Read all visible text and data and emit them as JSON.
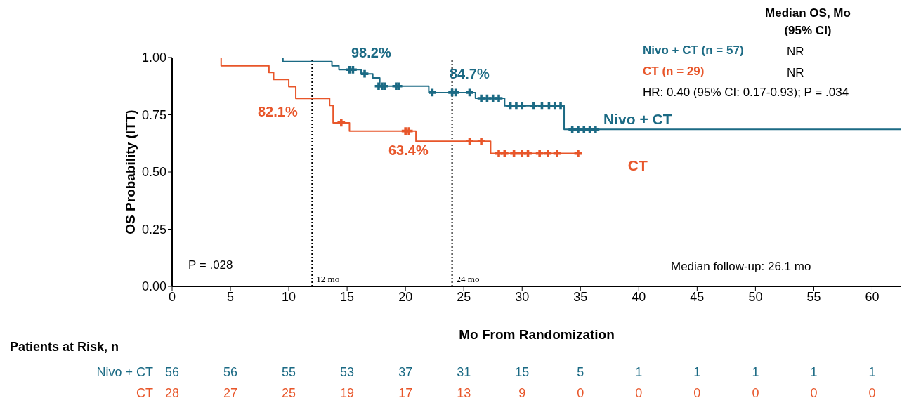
{
  "chart_data": {
    "type": "step",
    "xlabel": "Mo From Randomization",
    "ylabel": "OS Probability (ITT)",
    "xlim": [
      0,
      62.5
    ],
    "xticks": [
      0,
      5,
      10,
      15,
      20,
      25,
      30,
      35,
      40,
      45,
      50,
      55,
      60
    ],
    "ylim": [
      0,
      1
    ],
    "yticks": [
      {
        "value": 0,
        "label": "0.00"
      },
      {
        "value": 0.25,
        "label": "0.25"
      },
      {
        "value": 0.5,
        "label": "0.50"
      },
      {
        "value": 0.75,
        "label": "0.75"
      },
      {
        "value": 1,
        "label": "1.00"
      }
    ],
    "grid": false,
    "legend": false,
    "line_style": "solid",
    "series": [
      {
        "name": "Nivo + CT",
        "color": "#1b6a84",
        "x": [
          0,
          9.5,
          13.7,
          14.3,
          16.2,
          17.2,
          17.8,
          22.0,
          26.0,
          28.5,
          33.6,
          62.5
        ],
        "values": [
          1,
          0.982,
          0.964,
          0.947,
          0.929,
          0.911,
          0.875,
          0.847,
          0.822,
          0.789,
          0.686,
          0.686
        ]
      },
      {
        "name": "CT",
        "color": "#e8562a",
        "x": [
          0,
          4.2,
          8.3,
          8.7,
          10.0,
          10.6,
          13.5,
          13.8,
          15.2,
          20.9,
          27.3,
          34.8
        ],
        "values": [
          1,
          0.964,
          0.935,
          0.904,
          0.873,
          0.821,
          0.791,
          0.715,
          0.679,
          0.634,
          0.581,
          0.581
        ]
      },
      {
        "type": "scatter",
        "marker": "cross",
        "color": "#1b6a84",
        "x": [
          15.2,
          15.5,
          16.5,
          17.7,
          18.0,
          18.2,
          19.2,
          19.4,
          22.3,
          24.0,
          24.3,
          25.5,
          26.5,
          27.0,
          27.5,
          28.0,
          29.0,
          29.5,
          30.0,
          31.0,
          31.7,
          32.3,
          32.8,
          33.3,
          34.3,
          34.8,
          35.3,
          35.8,
          36.3
        ],
        "values": [
          0.947,
          0.947,
          0.929,
          0.875,
          0.875,
          0.875,
          0.875,
          0.875,
          0.847,
          0.847,
          0.847,
          0.847,
          0.822,
          0.822,
          0.822,
          0.822,
          0.789,
          0.789,
          0.789,
          0.789,
          0.789,
          0.789,
          0.789,
          0.789,
          0.686,
          0.686,
          0.686,
          0.686,
          0.686
        ]
      },
      {
        "type": "scatter",
        "marker": "cross",
        "color": "#e8562a",
        "x": [
          14.5,
          20.0,
          20.3,
          25.5,
          26.5,
          28.0,
          28.5,
          29.3,
          30.0,
          30.5,
          31.5,
          32.2,
          33.0,
          34.8
        ],
        "values": [
          0.715,
          0.679,
          0.679,
          0.634,
          0.634,
          0.581,
          0.581,
          0.581,
          0.581,
          0.581,
          0.581,
          0.581,
          0.581,
          0.581
        ]
      }
    ],
    "ref_lines": [
      {
        "axis": "x",
        "value": 12,
        "label": "12 mo",
        "line_style": "dotted",
        "color": "#000000"
      },
      {
        "axis": "x",
        "value": 24,
        "label": "24 mo",
        "line_style": "dotted",
        "color": "#000000"
      }
    ],
    "annotations": [
      "98.2%",
      "84.7%",
      "82.1%",
      "63.4%",
      "Median OS, Mo (95% CI)",
      "Nivo + CT (n = 57)",
      "NR",
      "CT (n = 29)",
      "NR",
      "HR: 0.40 (95% CI: 0.17-0.93); P = .034",
      "P = .028",
      "Median follow-up: 26.1 mo",
      "Patients at Risk, n",
      "Nivo + CT",
      "56 56 55 53 37 31 15 5 1 1 1 1 1",
      "CT",
      "28 27 25 19 17 13 9 0 0 0 0 0 0"
    ]
  }
}
